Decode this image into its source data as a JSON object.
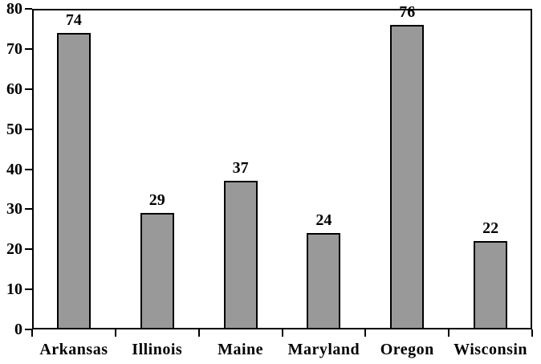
{
  "figure": {
    "background": "#ffffff",
    "text_color": "#000000"
  },
  "chart_data": {
    "type": "bar",
    "title": "",
    "xlabel": "",
    "ylabel": "",
    "categories": [
      "Arkansas",
      "Illinois",
      "Maine",
      "Maryland",
      "Oregon",
      "Wisconsin"
    ],
    "values": [
      74,
      29,
      37,
      24,
      76,
      22
    ],
    "data_labels": [
      "74",
      "29",
      "37",
      "24",
      "76",
      "22"
    ],
    "ylim": [
      0,
      80
    ],
    "yticks": [
      0,
      10,
      20,
      30,
      40,
      50,
      60,
      70,
      80
    ],
    "ytick_labels": [
      "0",
      "10",
      "20",
      "30",
      "40",
      "50",
      "60",
      "70",
      "80"
    ],
    "grid": false,
    "legend": false,
    "bar_fill": "#999999",
    "bar_border": "#000000",
    "axis_color": "#000000",
    "background": "#ffffff"
  }
}
